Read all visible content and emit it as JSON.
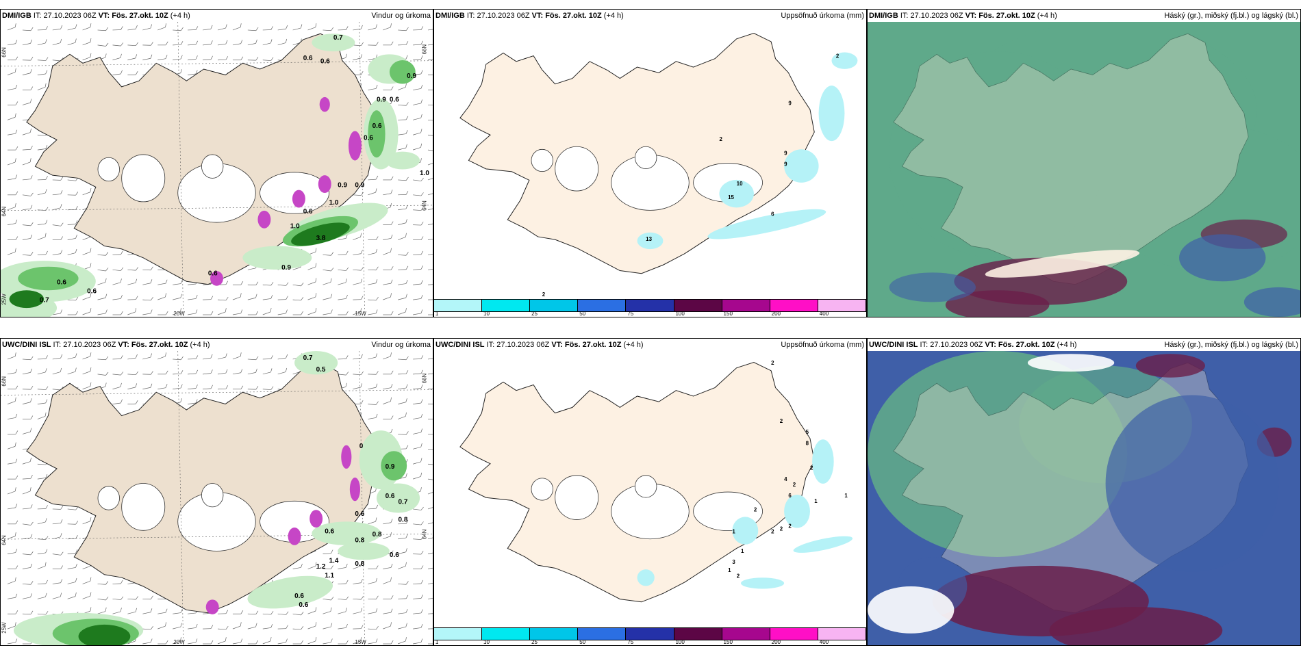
{
  "panels": [
    {
      "id": "p1",
      "model": "DMI/IGB",
      "it": " IT: 27.10.2023 06Z ",
      "vt_label": "VT:",
      "vt_value": " Fös. 27.okt. 10Z",
      "vt_offset": " (+4 h)",
      "product": "Vindur og úrkoma",
      "precip_labels": [
        "0.6",
        "0.7",
        "0.6",
        "0.9",
        "0.6",
        "0.9",
        "0.6",
        "0.6",
        "0.9",
        "1.0",
        "1.0",
        "0.9",
        "0.6",
        "1.0",
        "3.8",
        "0.9",
        "0.6",
        "0.6",
        "0.6",
        "0.7"
      ],
      "lon_labels": [
        "20W",
        "15W"
      ],
      "lat_labels": [
        "66N",
        "64N",
        "25W",
        "66N",
        "64N"
      ]
    },
    {
      "id": "p2",
      "model": "DMI/IGB",
      "it": " IT: 27.10.2023 06Z ",
      "vt_label": "VT:",
      "vt_value": " Fös. 27.okt. 10Z",
      "vt_offset": " (+4 h)",
      "product": "Uppsöfnuð úrkoma (mm)",
      "accum_labels": [
        "2",
        "9",
        "2",
        "9",
        "9",
        "10",
        "15",
        "6",
        "13",
        "2"
      ],
      "colorbar_ticks": [
        "1",
        "10",
        "25",
        "50",
        "75",
        "100",
        "150",
        "200",
        "400"
      ]
    },
    {
      "id": "p3",
      "model": "DMI/IGB",
      "it": " IT: 27.10.2023 06Z ",
      "vt_label": "VT:",
      "vt_value": " Fös. 27.okt. 10Z",
      "vt_offset": " (+4 h)",
      "product": "Háský (gr.), miðský (fj.bl.) og lágský (bl.)"
    },
    {
      "id": "p4",
      "model": "UWC/DINI ISL",
      "it": " IT: 27.10.2023 06Z ",
      "vt_label": "VT:",
      "vt_value": " Fös. 27.okt. 10Z",
      "vt_offset": " (+4 h)",
      "product": "Vindur og úrkoma",
      "precip_labels": [
        "0.7",
        "0.5",
        "0",
        "0.9",
        "0.6",
        "0.7",
        "0.6",
        "0.8",
        "0.6",
        "0.8",
        "0.8",
        "0.6",
        "1.2",
        "1.4",
        "1.1",
        "0.8",
        "0.6",
        "0.6"
      ],
      "lon_labels": [
        "20W",
        "15W"
      ],
      "lat_labels": [
        "66N",
        "64N",
        "25W",
        "66N",
        "64N"
      ]
    },
    {
      "id": "p5",
      "model": "UWC/DINI ISL",
      "it": " IT: 27.10.2023 06Z ",
      "vt_label": "VT:",
      "vt_value": " Fös. 27.okt. 10Z",
      "vt_offset": " (+4 h)",
      "product": "Uppsöfnuð úrkoma (mm)",
      "accum_labels": [
        "2",
        "2",
        "5",
        "8",
        "2",
        "4",
        "2",
        "6",
        "1",
        "1",
        "2",
        "2",
        "2",
        "2",
        "1",
        "1",
        "2",
        "1",
        "3"
      ],
      "colorbar_ticks": [
        "1",
        "10",
        "25",
        "50",
        "75",
        "100",
        "150",
        "200",
        "400"
      ]
    },
    {
      "id": "p6",
      "model": "UWC/DINI ISL",
      "it": " IT: 27.10.2023 06Z ",
      "vt_label": "VT:",
      "vt_value": " Fös. 27.okt. 10Z",
      "vt_offset": " (+4 h)",
      "product": "Háský (gr.), miðský (fj.bl.) og lágský (bl.)"
    }
  ],
  "colors": {
    "land": "#ede0cf",
    "land_light": "#fdf1e3",
    "glacier": "#ffffff",
    "precip_light": "#c9ecc9",
    "precip_mid": "#6cc46c",
    "precip_dark": "#1e7a1e",
    "precip_heavy": "#c646c6",
    "accum_cyan": "#b5f2f7",
    "high_cloud": "#5fa98a",
    "mid_cloud": "#3f5fa8",
    "low_cloud": "#6a1f4a",
    "colorbar": [
      "#b3f6f9",
      "#00e8f0",
      "#00c6e8",
      "#2b6fe3",
      "#2431a8",
      "#5c0645",
      "#a6078e",
      "#ff0fc6",
      "#f7b4f2"
    ]
  }
}
